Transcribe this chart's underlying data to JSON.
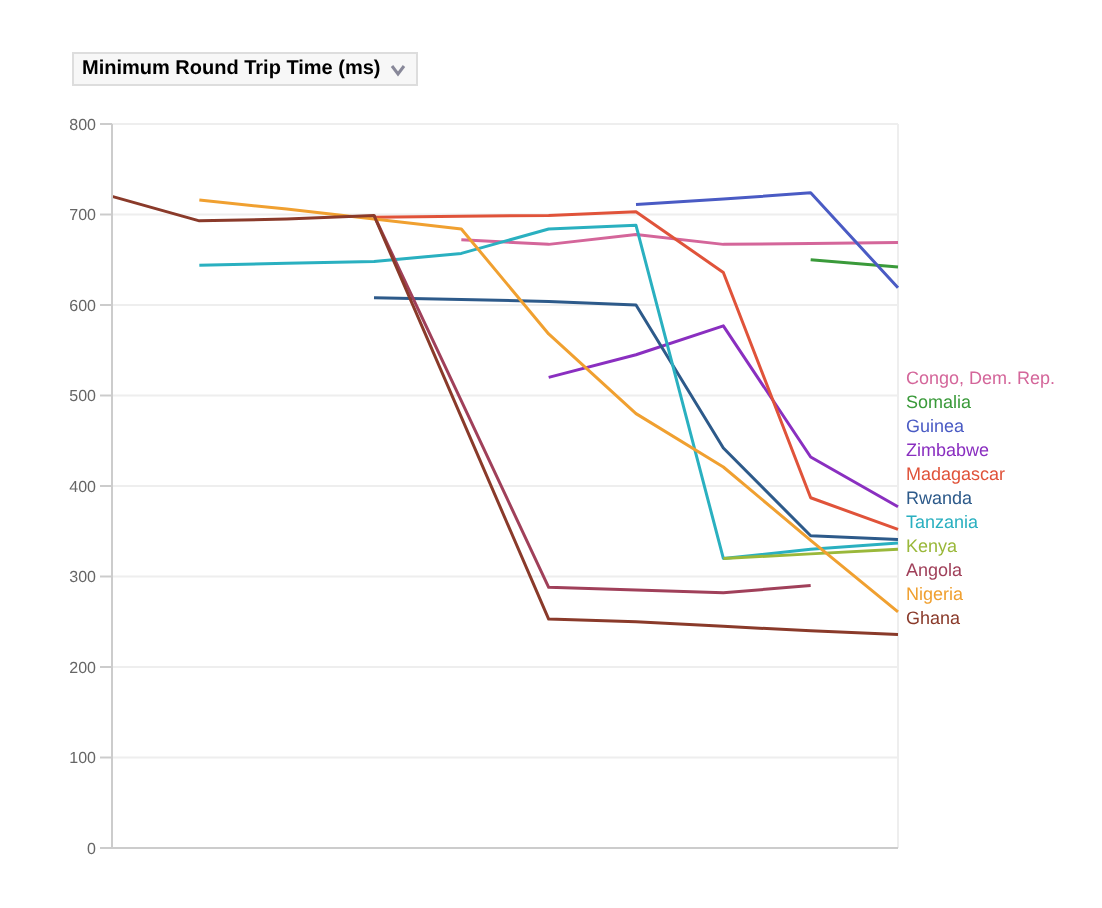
{
  "chart_data": {
    "type": "line",
    "ylabel": "Minimum Round Trip Time (ms)",
    "categories": [
      null,
      null,
      null,
      null,
      null,
      null,
      null,
      null,
      null,
      null
    ],
    "series": [
      {
        "name": "Congo, Dem. Rep.",
        "color": "#d4669a",
        "values": [
          null,
          null,
          null,
          null,
          672,
          667,
          678,
          667,
          668,
          669
        ]
      },
      {
        "name": "Somalia",
        "color": "#3a9a3a",
        "values": [
          null,
          null,
          null,
          null,
          null,
          null,
          null,
          null,
          650,
          642
        ]
      },
      {
        "name": "Guinea",
        "color": "#4a5bc4",
        "values": [
          null,
          null,
          null,
          null,
          null,
          null,
          711,
          717,
          724,
          619
        ]
      },
      {
        "name": "Zimbabwe",
        "color": "#8a2fc0",
        "values": [
          null,
          null,
          null,
          null,
          null,
          520,
          545,
          577,
          432,
          377
        ]
      },
      {
        "name": "Madagascar",
        "color": "#e0533a",
        "values": [
          null,
          null,
          null,
          697,
          698,
          699,
          703,
          636,
          387,
          352
        ]
      },
      {
        "name": "Rwanda",
        "color": "#2d5a8a",
        "values": [
          null,
          null,
          null,
          608,
          606,
          604,
          600,
          442,
          345,
          341
        ]
      },
      {
        "name": "Tanzania",
        "color": "#2ab0c0",
        "values": [
          null,
          644,
          646,
          648,
          657,
          684,
          688,
          320,
          330,
          337
        ]
      },
      {
        "name": "Kenya",
        "color": "#9ab83a",
        "values": [
          null,
          null,
          null,
          null,
          null,
          null,
          null,
          320,
          325,
          330
        ]
      },
      {
        "name": "Angola",
        "color": "#a0405a",
        "values": [
          null,
          null,
          null,
          699,
          494,
          288,
          285,
          282,
          290,
          null
        ]
      },
      {
        "name": "Nigeria",
        "color": "#f0a030",
        "values": [
          null,
          716,
          706,
          695,
          684,
          568,
          480,
          421,
          340,
          261
        ]
      },
      {
        "name": "Ghana",
        "color": "#8a3a2a",
        "values": [
          720,
          693,
          695,
          699,
          476,
          253,
          250,
          245,
          240,
          236
        ]
      }
    ],
    "ylim": [
      0,
      800
    ],
    "yticks": [
      0,
      100,
      200,
      300,
      400,
      500,
      600,
      700,
      800
    ],
    "grid": true,
    "legend": "right",
    "tick_labels": "y",
    "marker": "none"
  }
}
